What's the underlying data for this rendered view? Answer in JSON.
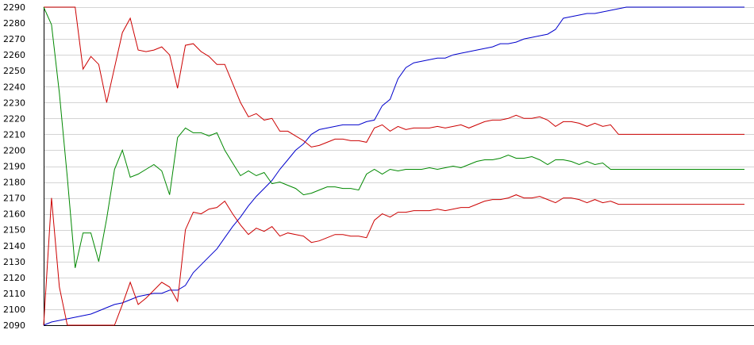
{
  "chart_data": {
    "type": "line",
    "title": "",
    "xlabel": "",
    "ylabel": "",
    "ylim": [
      2090,
      2290
    ],
    "yticks": [
      2090,
      2100,
      2110,
      2120,
      2130,
      2140,
      2150,
      2160,
      2170,
      2180,
      2190,
      2200,
      2210,
      2220,
      2230,
      2240,
      2250,
      2260,
      2270,
      2280,
      2290
    ],
    "grid": true,
    "legend": "none",
    "x": [
      0,
      1,
      2,
      3,
      4,
      5,
      6,
      7,
      8,
      9,
      10,
      11,
      12,
      13,
      14,
      15,
      16,
      17,
      18,
      19,
      20,
      21,
      22,
      23,
      24,
      25,
      26,
      27,
      28,
      29,
      30,
      31,
      32,
      33,
      34,
      35,
      36,
      37,
      38,
      39,
      40,
      41,
      42,
      43,
      44,
      45,
      46,
      47,
      48,
      49,
      50,
      51,
      52,
      53,
      54,
      55,
      56,
      57,
      58,
      59,
      60,
      61,
      62,
      63,
      64,
      65,
      66,
      67,
      68,
      69,
      70,
      71,
      72,
      73,
      74,
      75,
      76,
      77,
      78,
      79,
      80,
      81,
      82,
      83,
      84,
      85,
      86,
      87,
      88,
      89
    ],
    "series": [
      {
        "color": "#0000cc",
        "values": [
          2090,
          2092,
          2093,
          2094,
          2095,
          2096,
          2097,
          2099,
          2101,
          2103,
          2104,
          2106,
          2108,
          2109,
          2110,
          2110,
          2112,
          2112,
          2115,
          2123,
          2128,
          2133,
          2138,
          2145,
          2152,
          2158,
          2165,
          2171,
          2176,
          2181,
          2188,
          2194,
          2200,
          2204,
          2210,
          2213,
          2214,
          2215,
          2216,
          2216,
          2216,
          2218,
          2219,
          2228,
          2232,
          2245,
          2252,
          2255,
          2256,
          2257,
          2258,
          2258,
          2260,
          2261,
          2262,
          2263,
          2264,
          2265,
          2267,
          2267,
          2268,
          2270,
          2271,
          2272,
          2273,
          2276,
          2283,
          2284,
          2285,
          2286,
          2286,
          2287,
          2288,
          2289,
          2290,
          2290,
          2290,
          2290,
          2290,
          2290,
          2290,
          2290,
          2290,
          2290,
          2290,
          2290,
          2290,
          2290,
          2290,
          2290
        ]
      },
      {
        "color": "#cc0000",
        "values": [
          2290,
          2290,
          2290,
          2290,
          2290,
          2251,
          2259,
          2254,
          2230,
          2252,
          2274,
          2283,
          2263,
          2262,
          2263,
          2265,
          2260,
          2239,
          2266,
          2267,
          2262,
          2259,
          2254,
          2254,
          2242,
          2230,
          2221,
          2223,
          2219,
          2220,
          2212,
          2212,
          2209,
          2206,
          2202,
          2203,
          2205,
          2207,
          2207,
          2206,
          2206,
          2205,
          2214,
          2216,
          2212,
          2215,
          2213,
          2214,
          2214,
          2214,
          2215,
          2214,
          2215,
          2216,
          2214,
          2216,
          2218,
          2219,
          2219,
          2220,
          2222,
          2220,
          2220,
          2221,
          2219,
          2215,
          2218,
          2218,
          2217,
          2215,
          2217,
          2215,
          2216,
          2210,
          2210,
          2210,
          2210,
          2210,
          2210,
          2210,
          2210,
          2210,
          2210,
          2210,
          2210,
          2210,
          2210,
          2210,
          2210,
          2210
        ]
      },
      {
        "color": "#008800",
        "values": [
          2290,
          2279,
          2236,
          2183,
          2126,
          2148,
          2148,
          2130,
          2157,
          2188,
          2200,
          2183,
          2185,
          2188,
          2191,
          2187,
          2172,
          2208,
          2214,
          2211,
          2211,
          2209,
          2211,
          2200,
          2192,
          2184,
          2187,
          2184,
          2186,
          2179,
          2180,
          2178,
          2176,
          2172,
          2173,
          2175,
          2177,
          2177,
          2176,
          2176,
          2175,
          2185,
          2188,
          2185,
          2188,
          2187,
          2188,
          2188,
          2188,
          2189,
          2188,
          2189,
          2190,
          2189,
          2191,
          2193,
          2194,
          2194,
          2195,
          2197,
          2195,
          2195,
          2196,
          2194,
          2191,
          2194,
          2194,
          2193,
          2191,
          2193,
          2191,
          2192,
          2188,
          2188,
          2188,
          2188,
          2188,
          2188,
          2188,
          2188,
          2188,
          2188,
          2188,
          2188,
          2188,
          2188,
          2188,
          2188,
          2188,
          2188
        ]
      },
      {
        "color": "#cc0000",
        "values": [
          2090,
          2170,
          2114,
          2090,
          2090,
          2090,
          2090,
          2090,
          2090,
          2090,
          2103,
          2117,
          2103,
          2107,
          2112,
          2117,
          2114,
          2105,
          2150,
          2161,
          2160,
          2163,
          2164,
          2168,
          2160,
          2153,
          2147,
          2151,
          2149,
          2152,
          2146,
          2148,
          2147,
          2146,
          2142,
          2143,
          2145,
          2147,
          2147,
          2146,
          2146,
          2145,
          2156,
          2160,
          2158,
          2161,
          2161,
          2162,
          2162,
          2162,
          2163,
          2162,
          2163,
          2164,
          2164,
          2166,
          2168,
          2169,
          2169,
          2170,
          2172,
          2170,
          2170,
          2171,
          2169,
          2167,
          2170,
          2170,
          2169,
          2167,
          2169,
          2167,
          2168,
          2166,
          2166,
          2166,
          2166,
          2166,
          2166,
          2166,
          2166,
          2166,
          2166,
          2166,
          2166,
          2166,
          2166,
          2166,
          2166,
          2166
        ]
      }
    ]
  }
}
